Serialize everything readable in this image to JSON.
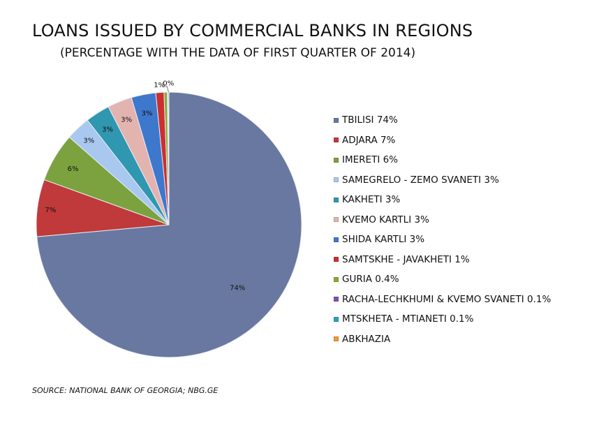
{
  "title": "LOANS ISSUED BY COMMERCIAL BANKS IN REGIONS",
  "subtitle": "(PERCENTAGE WITH THE DATA OF FIRST QUARTER OF 2014)",
  "source": "SOURCE: NATIONAL BANK OF GEORGIA; NBG.GE",
  "chart_data": {
    "type": "pie",
    "title": "LOANS ISSUED BY COMMERCIAL BANKS IN REGIONS",
    "subtitle": "(PERCENTAGE WITH THE DATA OF FIRST QUARTER OF 2014)",
    "legend_position": "right",
    "categories": [
      "TBILISI",
      "ADJARA",
      "IMERETI",
      "SAMEGRELO - ZEMO SVANETI",
      "KAKHETI",
      "KVEMO KARTLI",
      "SHIDA KARTLI",
      "SAMTSKHE - JAVAKHETI",
      "GURIA",
      "RACHA-LECHKHUMI & KVEMO SVANETI",
      "MTSKHETA - MTIANETI",
      "ABKHAZIA"
    ],
    "values": [
      74,
      7,
      6,
      3,
      3,
      3,
      3,
      1,
      0.4,
      0.1,
      0.1,
      0
    ],
    "legend_labels": [
      "TBILISI 74%",
      "ADJARA 7%",
      "IMERETI 6%",
      "SAMEGRELO - ZEMO SVANETI 3%",
      "KAKHETI 3%",
      "KVEMO KARTLI 3%",
      "SHIDA KARTLI 3%",
      "SAMTSKHE - JAVAKHETI 1%",
      "GURIA 0.4%",
      "RACHA-LECHKHUMI & KVEMO SVANETI 0.1%",
      "MTSKHETA - MTIANETI 0.1%",
      "ABKHAZIA"
    ],
    "data_labels": [
      "74%",
      "7%",
      "6%",
      "3%",
      "3%",
      "3%",
      "3%",
      "1%",
      "",
      "",
      "0%",
      ""
    ],
    "colors": [
      "#6878a0",
      "#c0393b",
      "#7ba23f",
      "#a9c8ef",
      "#2f97b0",
      "#e3b3b0",
      "#3d78cc",
      "#cc2f2f",
      "#8aaa33",
      "#7a55a8",
      "#2aa3be",
      "#f09a35"
    ]
  }
}
